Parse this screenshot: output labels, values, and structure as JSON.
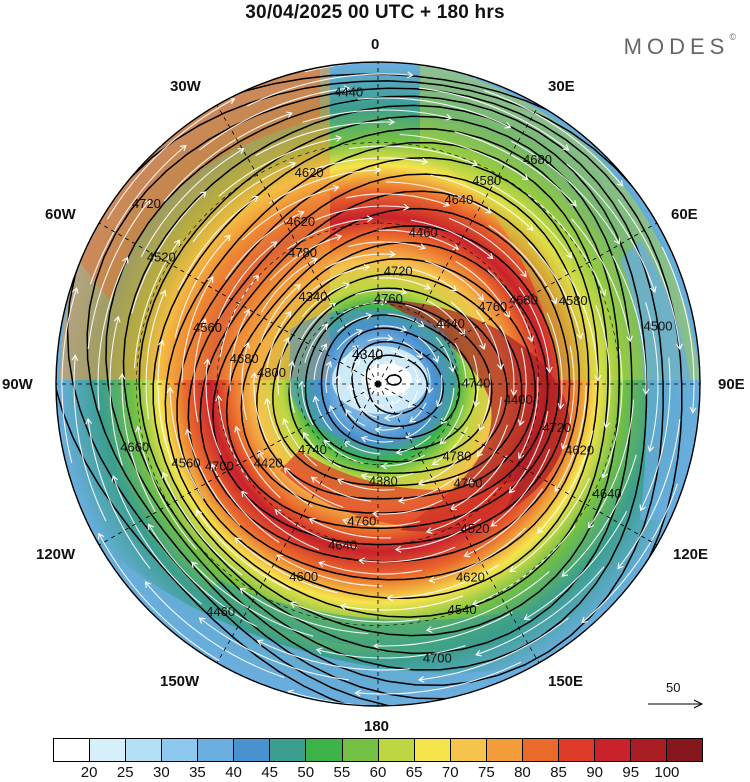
{
  "title": "30/04/2025  00 UTC  + 180 hrs",
  "brand": {
    "text": "MODES",
    "mark": "©"
  },
  "longitude_labels": {
    "top": "0",
    "top_right": "30E",
    "right_upper": "60E",
    "right": "90E",
    "right_lower": "120E",
    "bottom_right": "150E",
    "bottom": "180",
    "bottom_left": "150W",
    "left_lower": "120W",
    "left": "90W",
    "left_upper": "60W",
    "top_left": "30W"
  },
  "contour_labels": [
    "4740",
    "4740",
    "4720",
    "4700",
    "4680",
    "4680",
    "4640",
    "4620",
    "4620",
    "4560",
    "4580",
    "4540",
    "4520",
    "4500",
    "4460",
    "4440",
    "4420",
    "4420",
    "4440",
    "4380",
    "4340",
    "4400",
    "4420",
    "4460",
    "4520",
    "4560",
    "4580",
    "4600",
    "4620",
    "4640",
    "4660",
    "4680",
    "4700",
    "4720",
    "4740",
    "4740",
    "4760",
    "4780",
    "4800",
    "4760",
    "4760",
    "4780",
    "4720",
    "4700",
    "4640",
    "4620"
  ],
  "vector_scale": {
    "label": "50"
  },
  "colorbar": {
    "colors": [
      "#ffffff",
      "#d6f0fb",
      "#b4e0f6",
      "#8fc8ef",
      "#6aaedf",
      "#4a91d0",
      "#3b9e8e",
      "#3db34a",
      "#73c044",
      "#bcd741",
      "#f6e44d",
      "#f6c34d",
      "#f29d3a",
      "#ea6a2c",
      "#de3b28",
      "#c8222b",
      "#a91e25",
      "#86181d"
    ],
    "ticks": [
      "20",
      "25",
      "30",
      "35",
      "40",
      "45",
      "50",
      "55",
      "60",
      "65",
      "70",
      "75",
      "80",
      "85",
      "90",
      "95",
      "100"
    ]
  },
  "pole_value_label": "4340"
}
